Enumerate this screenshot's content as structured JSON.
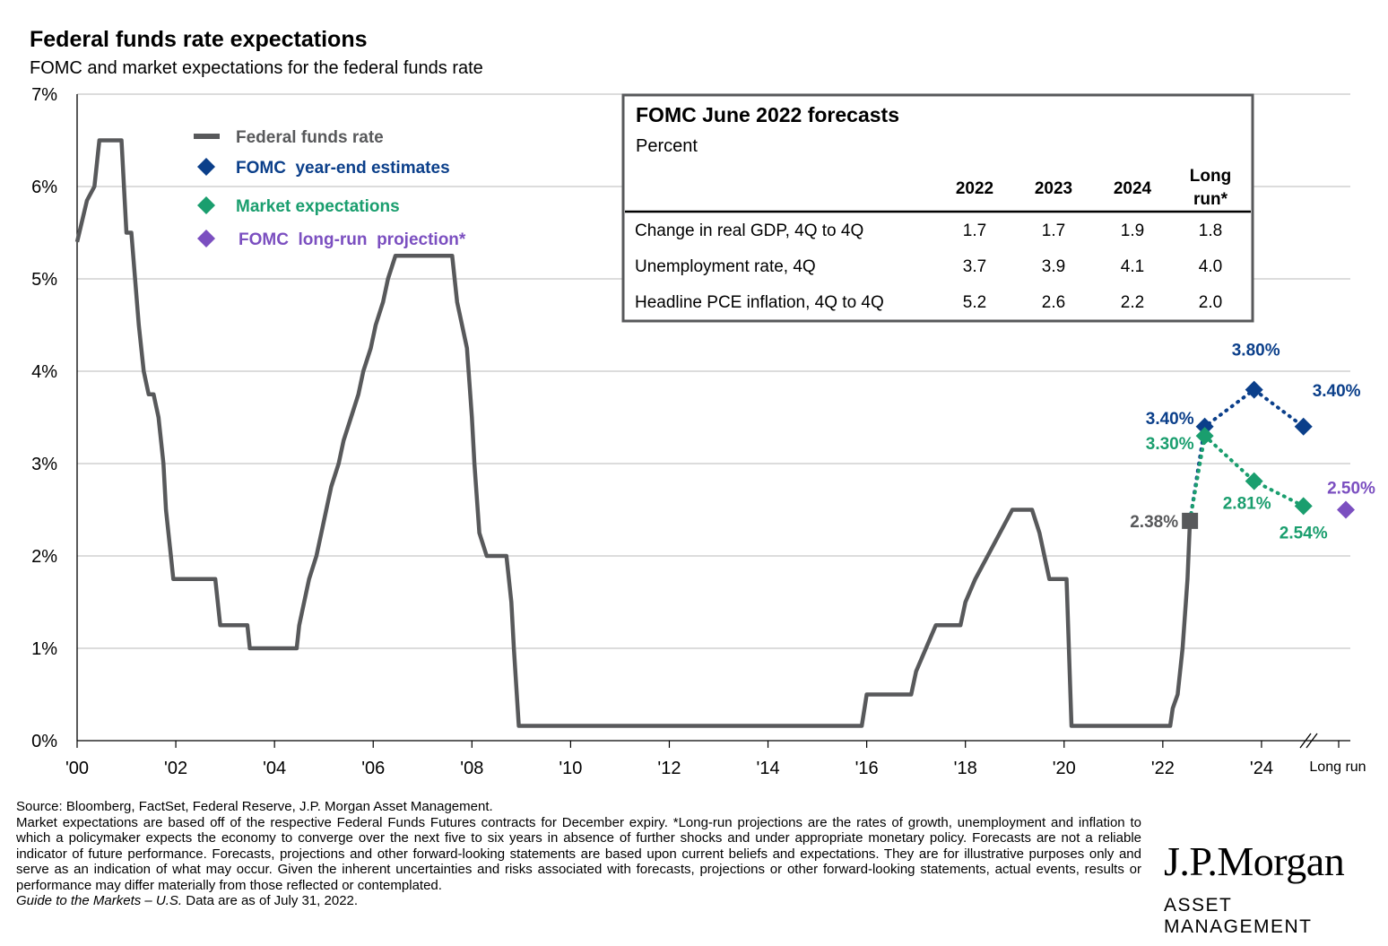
{
  "header": {
    "title": "Federal funds rate expectations",
    "subtitle": "FOMC and market expectations for the federal funds rate"
  },
  "chart_data": {
    "type": "line",
    "y_axis": {
      "ylim": [
        0,
        7
      ],
      "ticks": [
        0,
        1,
        2,
        3,
        4,
        5,
        6,
        7
      ],
      "tick_labels": [
        "0%",
        "1%",
        "2%",
        "3%",
        "4%",
        "5%",
        "6%",
        "7%"
      ]
    },
    "x_axis": {
      "xlim": [
        2000,
        2025.8
      ],
      "ticks": [
        2000,
        2002,
        2004,
        2006,
        2008,
        2010,
        2012,
        2014,
        2016,
        2018,
        2020,
        2022,
        2024
      ],
      "tick_labels": [
        "'00",
        "'02",
        "'04",
        "'06",
        "'08",
        "'10",
        "'12",
        "'14",
        "'16",
        "'18",
        "'20",
        "'22",
        "'24"
      ],
      "extra_tick_label": "Long run"
    },
    "grid": "horizontal",
    "legend": {
      "placement": "top-left",
      "items": [
        {
          "label": "Federal funds rate",
          "color": "#58595b",
          "marker": "line"
        },
        {
          "label": "FOMC  year-end estimates",
          "color": "#0b3f8a",
          "marker": "diamond"
        },
        {
          "label": "Market expectations",
          "color": "#1a9e6e",
          "marker": "diamond"
        },
        {
          "label": "FOMC  long-run  projection*",
          "color": "#7b4fc0",
          "marker": "diamond"
        }
      ]
    },
    "series": [
      {
        "name": "Federal funds rate",
        "color": "#58595b",
        "points": [
          [
            2000.0,
            5.4
          ],
          [
            2000.2,
            5.85
          ],
          [
            2000.35,
            6.0
          ],
          [
            2000.45,
            6.5
          ],
          [
            2000.6,
            6.5
          ],
          [
            2000.9,
            6.5
          ],
          [
            2001.0,
            5.5
          ],
          [
            2001.1,
            5.5
          ],
          [
            2001.25,
            4.5
          ],
          [
            2001.35,
            4.0
          ],
          [
            2001.45,
            3.75
          ],
          [
            2001.55,
            3.75
          ],
          [
            2001.65,
            3.5
          ],
          [
            2001.75,
            3.0
          ],
          [
            2001.8,
            2.5
          ],
          [
            2001.9,
            2.0
          ],
          [
            2001.95,
            1.75
          ],
          [
            2002.8,
            1.75
          ],
          [
            2002.9,
            1.25
          ],
          [
            2003.45,
            1.25
          ],
          [
            2003.5,
            1.0
          ],
          [
            2004.45,
            1.0
          ],
          [
            2004.5,
            1.25
          ],
          [
            2004.6,
            1.5
          ],
          [
            2004.7,
            1.75
          ],
          [
            2004.85,
            2.0
          ],
          [
            2004.95,
            2.25
          ],
          [
            2005.05,
            2.5
          ],
          [
            2005.15,
            2.75
          ],
          [
            2005.3,
            3.0
          ],
          [
            2005.4,
            3.25
          ],
          [
            2005.55,
            3.5
          ],
          [
            2005.7,
            3.75
          ],
          [
            2005.8,
            4.0
          ],
          [
            2005.95,
            4.25
          ],
          [
            2006.05,
            4.5
          ],
          [
            2006.2,
            4.75
          ],
          [
            2006.3,
            5.0
          ],
          [
            2006.45,
            5.25
          ],
          [
            2007.6,
            5.25
          ],
          [
            2007.7,
            4.75
          ],
          [
            2007.8,
            4.5
          ],
          [
            2007.9,
            4.25
          ],
          [
            2008.0,
            3.5
          ],
          [
            2008.05,
            3.0
          ],
          [
            2008.15,
            2.25
          ],
          [
            2008.3,
            2.0
          ],
          [
            2008.7,
            2.0
          ],
          [
            2008.8,
            1.5
          ],
          [
            2008.85,
            1.0
          ],
          [
            2008.95,
            0.16
          ],
          [
            2015.9,
            0.16
          ],
          [
            2016.0,
            0.5
          ],
          [
            2016.9,
            0.5
          ],
          [
            2017.0,
            0.75
          ],
          [
            2017.2,
            1.0
          ],
          [
            2017.4,
            1.25
          ],
          [
            2017.9,
            1.25
          ],
          [
            2018.0,
            1.5
          ],
          [
            2018.2,
            1.75
          ],
          [
            2018.45,
            2.0
          ],
          [
            2018.7,
            2.25
          ],
          [
            2018.95,
            2.5
          ],
          [
            2019.35,
            2.5
          ],
          [
            2019.5,
            2.25
          ],
          [
            2019.6,
            2.0
          ],
          [
            2019.7,
            1.75
          ],
          [
            2019.9,
            1.75
          ],
          [
            2020.05,
            1.75
          ],
          [
            2020.15,
            0.16
          ],
          [
            2022.15,
            0.16
          ],
          [
            2022.2,
            0.35
          ],
          [
            2022.3,
            0.5
          ],
          [
            2022.4,
            1.0
          ],
          [
            2022.5,
            1.75
          ],
          [
            2022.55,
            2.38
          ]
        ]
      },
      {
        "name": "FOMC  year-end estimates",
        "color": "#0b3f8a",
        "marker": "diamond",
        "points": [
          [
            2022.85,
            3.4
          ],
          [
            2023.85,
            3.8
          ],
          [
            2024.85,
            3.4
          ]
        ],
        "labels": [
          "3.40%",
          "3.80%",
          "3.40%"
        ]
      },
      {
        "name": "Market expectations",
        "color": "#1a9e6e",
        "marker": "diamond",
        "points": [
          [
            2022.85,
            3.3
          ],
          [
            2023.85,
            2.81
          ],
          [
            2024.85,
            2.54
          ]
        ],
        "labels": [
          "3.30%",
          "2.81%",
          "2.54%"
        ]
      },
      {
        "name": "FOMC  long-run  projection*",
        "color": "#7b4fc0",
        "marker": "diamond",
        "points": [
          [
            "Long run",
            2.5
          ]
        ],
        "labels": [
          "2.50%"
        ]
      }
    ],
    "current_point": {
      "x": 2022.55,
      "y": 2.38,
      "label": "2.38%",
      "color": "#58595b"
    },
    "forecast_table": {
      "title": "FOMC June 2022 forecasts",
      "subtitle": "Percent",
      "columns": [
        "2022",
        "2023",
        "2024",
        "Long run*"
      ],
      "rows": [
        {
          "label": "Change in real GDP, 4Q to 4Q",
          "values": [
            "1.7",
            "1.7",
            "1.9",
            "1.8"
          ]
        },
        {
          "label": "Unemployment rate, 4Q",
          "values": [
            "3.7",
            "3.9",
            "4.1",
            "4.0"
          ]
        },
        {
          "label": "Headline PCE inflation, 4Q to 4Q",
          "values": [
            "5.2",
            "2.6",
            "2.2",
            "2.0"
          ]
        }
      ]
    }
  },
  "footnote": {
    "source": "Source: Bloomberg, FactSet, Federal Reserve, J.P. Morgan Asset Management.",
    "body": "Market expectations are based off of the respective Federal Funds Futures contracts for December expiry. *Long-run projections are the rates of growth, unemployment and inflation to which a policymaker expects the economy to converge over the next five to six years in absence of further shocks and under appropriate monetary policy. Forecasts are not a reliable indicator of future performance. Forecasts, projections and other forward-looking statements are based upon current beliefs and expectations. They are for illustrative purposes only and serve as an indication of what may occur. Given the inherent uncertainties and risks associated with forecasts, projections or other forward-looking statements, actual events, results or performance may differ materially from those reflected or contemplated.",
    "guide_italic": "Guide to the Markets – U.S.",
    "guide_date": " Data are as of July 31, 2022."
  },
  "logo": {
    "main": "J.P.Morgan",
    "sub": "ASSET MANAGEMENT"
  }
}
